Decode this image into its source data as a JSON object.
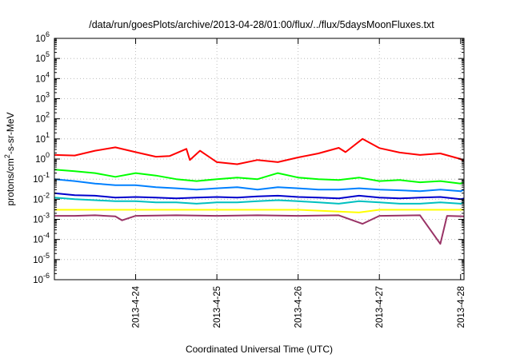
{
  "chart_data": {
    "type": "line",
    "title": "/data/run/goesPlots/archive/2013-04-28/01:00/flux/../flux/5daysMoonFluxes.txt",
    "xlabel": "Coordinated Universal Time (UTC)",
    "ylabel_parts": [
      "protons/cm",
      "2",
      "-s-sr-MeV"
    ],
    "ylabel": "protons/cm2-s-sr-MeV",
    "yscale": "log",
    "ylim_exp": [
      -6,
      6
    ],
    "y_tick_labels": [
      {
        "base": "10",
        "exp": "-6"
      },
      {
        "base": "10",
        "exp": "-5"
      },
      {
        "base": "10",
        "exp": "-4"
      },
      {
        "base": "10",
        "exp": "-3"
      },
      {
        "base": "10",
        "exp": "-2"
      },
      {
        "base": "10",
        "exp": "-1"
      },
      {
        "base": "10",
        "exp": "0"
      },
      {
        "base": "10",
        "exp": "1"
      },
      {
        "base": "10",
        "exp": "2"
      },
      {
        "base": "10",
        "exp": "3"
      },
      {
        "base": "10",
        "exp": "4"
      },
      {
        "base": "10",
        "exp": "5"
      },
      {
        "base": "10",
        "exp": "6"
      }
    ],
    "xlim": [
      "2013-04-23 00:00",
      "2013-04-28 01:00"
    ],
    "x_tick_labels": [
      "2013-4-24",
      "2013-4-25",
      "2013-4-26",
      "2013-4-27",
      "2013-4-28"
    ],
    "grid": true,
    "series": [
      {
        "color": "#ff0000",
        "points": [
          [
            "2013-04-23 00:00",
            1.6
          ],
          [
            "2013-04-23 06:00",
            1.5
          ],
          [
            "2013-04-23 12:00",
            2.6
          ],
          [
            "2013-04-23 18:00",
            3.8
          ],
          [
            "2013-04-24 00:00",
            2.2
          ],
          [
            "2013-04-24 06:00",
            1.3
          ],
          [
            "2013-04-24 10:00",
            1.4
          ],
          [
            "2013-04-24 15:00",
            3.2
          ],
          [
            "2013-04-24 16:00",
            0.9
          ],
          [
            "2013-04-24 19:00",
            2.6
          ],
          [
            "2013-04-25 00:00",
            0.7
          ],
          [
            "2013-04-25 06:00",
            0.55
          ],
          [
            "2013-04-25 12:00",
            0.9
          ],
          [
            "2013-04-25 18:00",
            0.7
          ],
          [
            "2013-04-26 00:00",
            1.2
          ],
          [
            "2013-04-26 06:00",
            1.9
          ],
          [
            "2013-04-26 12:00",
            3.6
          ],
          [
            "2013-04-26 14:00",
            2.2
          ],
          [
            "2013-04-26 19:00",
            10
          ],
          [
            "2013-04-27 00:00",
            3.5
          ],
          [
            "2013-04-27 06:00",
            2.1
          ],
          [
            "2013-04-27 12:00",
            1.6
          ],
          [
            "2013-04-27 18:00",
            1.9
          ],
          [
            "2013-04-28 00:00",
            1.0
          ],
          [
            "2013-04-28 01:00",
            0.8
          ]
        ]
      },
      {
        "color": "#00ff00",
        "points": [
          [
            "2013-04-23 00:00",
            0.3
          ],
          [
            "2013-04-23 06:00",
            0.25
          ],
          [
            "2013-04-23 12:00",
            0.2
          ],
          [
            "2013-04-23 18:00",
            0.13
          ],
          [
            "2013-04-24 00:00",
            0.2
          ],
          [
            "2013-04-24 06:00",
            0.15
          ],
          [
            "2013-04-24 12:00",
            0.1
          ],
          [
            "2013-04-24 18:00",
            0.08
          ],
          [
            "2013-04-25 00:00",
            0.1
          ],
          [
            "2013-04-25 06:00",
            0.12
          ],
          [
            "2013-04-25 12:00",
            0.1
          ],
          [
            "2013-04-25 18:00",
            0.2
          ],
          [
            "2013-04-26 00:00",
            0.12
          ],
          [
            "2013-04-26 06:00",
            0.1
          ],
          [
            "2013-04-26 12:00",
            0.09
          ],
          [
            "2013-04-26 18:00",
            0.12
          ],
          [
            "2013-04-27 00:00",
            0.08
          ],
          [
            "2013-04-27 06:00",
            0.09
          ],
          [
            "2013-04-27 12:00",
            0.07
          ],
          [
            "2013-04-27 18:00",
            0.08
          ],
          [
            "2013-04-28 00:00",
            0.06
          ],
          [
            "2013-04-28 01:00",
            0.07
          ]
        ]
      },
      {
        "color": "#0080ff",
        "points": [
          [
            "2013-04-23 00:00",
            0.1
          ],
          [
            "2013-04-23 06:00",
            0.08
          ],
          [
            "2013-04-23 12:00",
            0.06
          ],
          [
            "2013-04-23 18:00",
            0.05
          ],
          [
            "2013-04-24 00:00",
            0.05
          ],
          [
            "2013-04-24 06:00",
            0.04
          ],
          [
            "2013-04-24 12:00",
            0.035
          ],
          [
            "2013-04-24 18:00",
            0.03
          ],
          [
            "2013-04-25 00:00",
            0.035
          ],
          [
            "2013-04-25 06:00",
            0.04
          ],
          [
            "2013-04-25 12:00",
            0.03
          ],
          [
            "2013-04-25 18:00",
            0.04
          ],
          [
            "2013-04-26 00:00",
            0.035
          ],
          [
            "2013-04-26 06:00",
            0.03
          ],
          [
            "2013-04-26 12:00",
            0.03
          ],
          [
            "2013-04-26 18:00",
            0.035
          ],
          [
            "2013-04-27 00:00",
            0.03
          ],
          [
            "2013-04-27 06:00",
            0.028
          ],
          [
            "2013-04-27 12:00",
            0.025
          ],
          [
            "2013-04-27 18:00",
            0.03
          ],
          [
            "2013-04-28 00:00",
            0.025
          ],
          [
            "2013-04-28 01:00",
            0.03
          ]
        ]
      },
      {
        "color": "#0000cc",
        "points": [
          [
            "2013-04-23 00:00",
            0.02
          ],
          [
            "2013-04-23 06:00",
            0.016
          ],
          [
            "2013-04-23 12:00",
            0.015
          ],
          [
            "2013-04-23 18:00",
            0.012
          ],
          [
            "2013-04-24 00:00",
            0.013
          ],
          [
            "2013-04-24 06:00",
            0.012
          ],
          [
            "2013-04-24 12:00",
            0.011
          ],
          [
            "2013-04-24 18:00",
            0.012
          ],
          [
            "2013-04-25 00:00",
            0.013
          ],
          [
            "2013-04-25 06:00",
            0.012
          ],
          [
            "2013-04-25 12:00",
            0.014
          ],
          [
            "2013-04-25 18:00",
            0.015
          ],
          [
            "2013-04-26 00:00",
            0.013
          ],
          [
            "2013-04-26 06:00",
            0.012
          ],
          [
            "2013-04-26 12:00",
            0.011
          ],
          [
            "2013-04-26 18:00",
            0.015
          ],
          [
            "2013-04-27 00:00",
            0.012
          ],
          [
            "2013-04-27 06:00",
            0.011
          ],
          [
            "2013-04-27 12:00",
            0.012
          ],
          [
            "2013-04-27 18:00",
            0.013
          ],
          [
            "2013-04-28 00:00",
            0.01
          ],
          [
            "2013-04-28 01:00",
            0.011
          ]
        ]
      },
      {
        "color": "#00c0c0",
        "points": [
          [
            "2013-04-23 00:00",
            0.012
          ],
          [
            "2013-04-23 06:00",
            0.01
          ],
          [
            "2013-04-23 12:00",
            0.009
          ],
          [
            "2013-04-23 18:00",
            0.008
          ],
          [
            "2013-04-24 00:00",
            0.008
          ],
          [
            "2013-04-24 06:00",
            0.007
          ],
          [
            "2013-04-24 12:00",
            0.007
          ],
          [
            "2013-04-24 18:00",
            0.006
          ],
          [
            "2013-04-25 00:00",
            0.007
          ],
          [
            "2013-04-25 06:00",
            0.007
          ],
          [
            "2013-04-25 12:00",
            0.008
          ],
          [
            "2013-04-25 18:00",
            0.009
          ],
          [
            "2013-04-26 00:00",
            0.008
          ],
          [
            "2013-04-26 06:00",
            0.007
          ],
          [
            "2013-04-26 12:00",
            0.006
          ],
          [
            "2013-04-26 18:00",
            0.008
          ],
          [
            "2013-04-27 00:00",
            0.007
          ],
          [
            "2013-04-27 06:00",
            0.006
          ],
          [
            "2013-04-27 12:00",
            0.006
          ],
          [
            "2013-04-27 18:00",
            0.007
          ],
          [
            "2013-04-28 00:00",
            0.006
          ],
          [
            "2013-04-28 01:00",
            0.007
          ]
        ]
      },
      {
        "color": "#ffff00",
        "points": [
          [
            "2013-04-23 00:00",
            0.003
          ],
          [
            "2013-04-24 00:00",
            0.003
          ],
          [
            "2013-04-25 00:00",
            0.003
          ],
          [
            "2013-04-26 00:00",
            0.003
          ],
          [
            "2013-04-26 18:00",
            0.0022
          ],
          [
            "2013-04-27 00:00",
            0.003
          ],
          [
            "2013-04-28 00:00",
            0.003
          ],
          [
            "2013-04-28 01:00",
            0.003
          ]
        ]
      },
      {
        "color": "#993366",
        "points": [
          [
            "2013-04-23 00:00",
            0.0015
          ],
          [
            "2013-04-23 06:00",
            0.0015
          ],
          [
            "2013-04-23 12:00",
            0.0016
          ],
          [
            "2013-04-23 18:00",
            0.0014
          ],
          [
            "2013-04-23 20:00",
            0.0009
          ],
          [
            "2013-04-24 00:00",
            0.0015
          ],
          [
            "2013-04-24 12:00",
            0.0016
          ],
          [
            "2013-04-25 00:00",
            0.0015
          ],
          [
            "2013-04-25 12:00",
            0.0016
          ],
          [
            "2013-04-26 00:00",
            0.0015
          ],
          [
            "2013-04-26 12:00",
            0.0016
          ],
          [
            "2013-04-26 19:00",
            0.0006
          ],
          [
            "2013-04-27 00:00",
            0.0015
          ],
          [
            "2013-04-27 12:00",
            0.0016
          ],
          [
            "2013-04-27 18:00",
            6e-05
          ],
          [
            "2013-04-27 20:00",
            0.0015
          ],
          [
            "2013-04-28 01:00",
            0.0014
          ]
        ]
      }
    ]
  }
}
